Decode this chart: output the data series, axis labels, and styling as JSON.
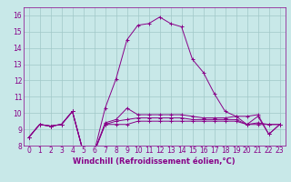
{
  "title": "",
  "xlabel": "Windchill (Refroidissement éolien,°C)",
  "bg_color": "#c8e8e8",
  "grid_color": "#a0c8c8",
  "line_color": "#880088",
  "xlim": [
    -0.5,
    23.5
  ],
  "ylim": [
    8,
    16.5
  ],
  "xticks": [
    0,
    1,
    2,
    3,
    4,
    5,
    6,
    7,
    8,
    9,
    10,
    11,
    12,
    13,
    14,
    15,
    16,
    17,
    18,
    19,
    20,
    21,
    22,
    23
  ],
  "yticks": [
    8,
    9,
    10,
    11,
    12,
    13,
    14,
    15,
    16
  ],
  "series": [
    [
      8.5,
      9.3,
      9.2,
      9.3,
      10.1,
      7.6,
      7.6,
      9.3,
      9.3,
      9.3,
      9.5,
      9.5,
      9.5,
      9.5,
      9.5,
      9.5,
      9.5,
      9.5,
      9.5,
      9.5,
      9.3,
      9.3,
      9.3,
      9.3
    ],
    [
      8.5,
      9.3,
      9.2,
      9.3,
      10.1,
      7.6,
      7.6,
      9.3,
      9.5,
      9.6,
      9.7,
      9.7,
      9.7,
      9.7,
      9.7,
      9.6,
      9.6,
      9.6,
      9.6,
      9.6,
      9.3,
      9.4,
      9.3,
      9.3
    ],
    [
      8.5,
      9.3,
      9.2,
      9.3,
      10.1,
      7.6,
      7.6,
      9.4,
      9.6,
      10.3,
      9.9,
      9.9,
      9.9,
      9.9,
      9.9,
      9.8,
      9.7,
      9.7,
      9.7,
      9.8,
      9.3,
      9.8,
      8.7,
      9.3
    ],
    [
      8.5,
      9.3,
      9.2,
      9.3,
      10.1,
      7.6,
      7.6,
      10.3,
      12.1,
      14.5,
      15.4,
      15.5,
      15.9,
      15.5,
      15.3,
      13.3,
      12.5,
      11.2,
      10.1,
      9.8,
      9.8,
      9.9,
      8.7,
      9.3
    ]
  ],
  "tick_fontsize": 5.5,
  "xlabel_fontsize": 6.0,
  "linewidth": 0.7,
  "markersize": 2.5
}
